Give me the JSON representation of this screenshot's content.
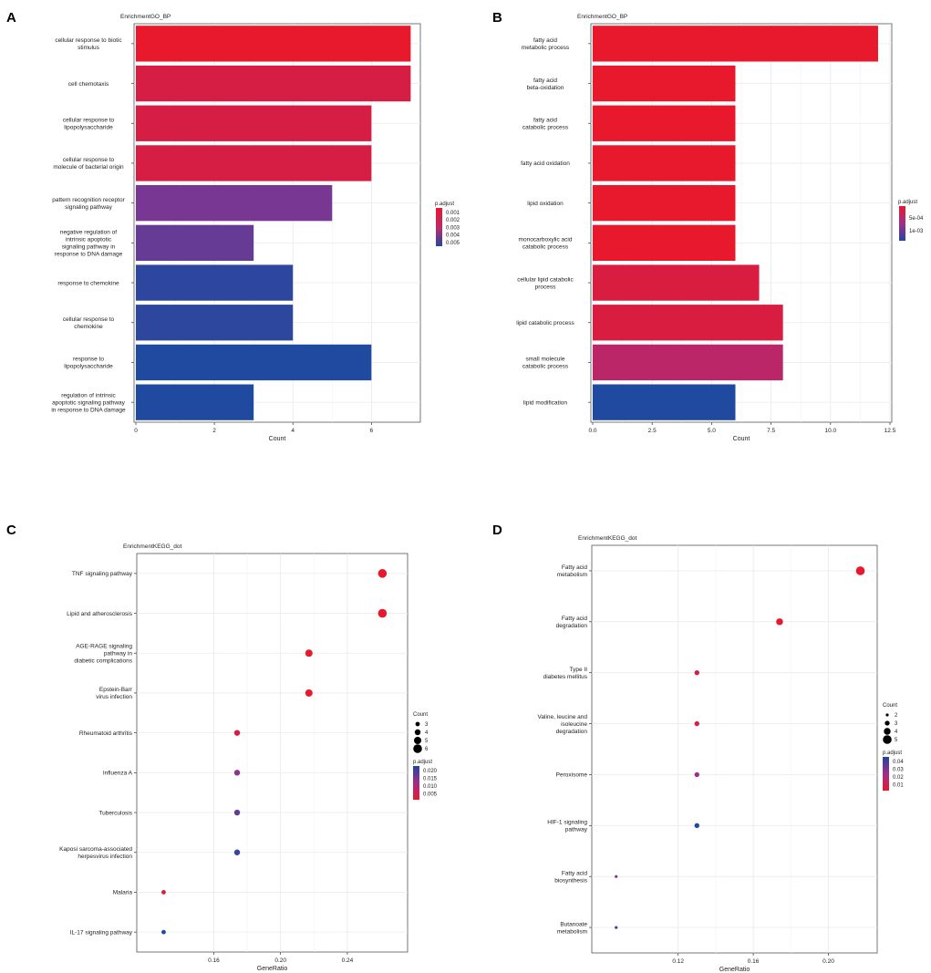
{
  "colors": {
    "red": "#e8192c",
    "blue": "#1f4aa0",
    "purple": "#6a3a9a"
  },
  "chart_data": [
    {
      "panel": "A",
      "type": "bar",
      "orientation": "horizontal",
      "title": "EnrichmentGO_BP",
      "xlabel": "Count",
      "xlim": [
        0,
        7.2
      ],
      "xticks": [
        0,
        2,
        4,
        6
      ],
      "xtick_labels": [
        "0",
        "2",
        "4",
        "6"
      ],
      "legend": {
        "title": "p.adjust",
        "labels": [
          "0.001",
          "0.002",
          "0.003",
          "0.004",
          "0.005"
        ],
        "range": [
          0.0005,
          0.0055
        ]
      },
      "bars": [
        {
          "label": [
            "cellular response to biotic",
            "stimulus"
          ],
          "value": 7,
          "padj": 0.0005
        },
        {
          "label": [
            "cell chemotaxis"
          ],
          "value": 7,
          "padj": 0.0011
        },
        {
          "label": [
            "cellular response to",
            "lipopolysaccharide"
          ],
          "value": 6,
          "padj": 0.0011
        },
        {
          "label": [
            "cellular response to",
            "molecule of bacterial origin"
          ],
          "value": 6,
          "padj": 0.0011
        },
        {
          "label": [
            "pattern recognition receptor",
            "signaling pathway"
          ],
          "value": 5,
          "padj": 0.0037
        },
        {
          "label": [
            "negative regulation of",
            "intrinsic apoptotic",
            "signaling pathway in",
            "response to DNA damage"
          ],
          "value": 3,
          "padj": 0.0041
        },
        {
          "label": [
            "response to chemokine"
          ],
          "value": 4,
          "padj": 0.0052
        },
        {
          "label": [
            "cellular response to",
            "chemokine"
          ],
          "value": 4,
          "padj": 0.0052
        },
        {
          "label": [
            "response to",
            "lipopolysaccharide"
          ],
          "value": 6,
          "padj": 0.0055
        },
        {
          "label": [
            "regulation of intrinsic",
            "apoptotic signaling pathway",
            "in response to DNA damage"
          ],
          "value": 3,
          "padj": 0.0055
        }
      ]
    },
    {
      "panel": "B",
      "type": "bar",
      "orientation": "horizontal",
      "title": "EnrichmentGO_BP",
      "xlabel": "Count",
      "xlim": [
        0,
        12.5
      ],
      "xticks": [
        0,
        2.5,
        5,
        7.5,
        10,
        12.5
      ],
      "xtick_labels": [
        "0.0",
        "2.5",
        "5.0",
        "7.5",
        "10.0",
        "12.5"
      ],
      "legend": {
        "title": "p.adjust",
        "labels": [
          "5e-04",
          "1e-03"
        ],
        "range": [
          0.0002,
          0.0012
        ]
      },
      "bars": [
        {
          "label": [
            "fatty acid",
            "metabolic process"
          ],
          "value": 12,
          "padj": 0.0002
        },
        {
          "label": [
            "fatty acid",
            "beta-oxidation"
          ],
          "value": 6,
          "padj": 0.0002
        },
        {
          "label": [
            "fatty acid",
            "catabolic process"
          ],
          "value": 6,
          "padj": 0.0002
        },
        {
          "label": [
            "fatty acid oxidation"
          ],
          "value": 6,
          "padj": 0.0002
        },
        {
          "label": [
            "lipid oxidation"
          ],
          "value": 6,
          "padj": 0.0002
        },
        {
          "label": [
            "monocarboxylic acid",
            "catabolic process"
          ],
          "value": 6,
          "padj": 0.0002
        },
        {
          "label": [
            "cellular lipid catabolic",
            "process"
          ],
          "value": 7,
          "padj": 0.0003
        },
        {
          "label": [
            "lipid catabolic process"
          ],
          "value": 8,
          "padj": 0.0003
        },
        {
          "label": [
            "small molecule",
            "catabolic process"
          ],
          "value": 8,
          "padj": 0.0005
        },
        {
          "label": [
            "lipid modification"
          ],
          "value": 6,
          "padj": 0.0012
        }
      ]
    },
    {
      "panel": "C",
      "type": "scatter",
      "title": "EnrichmentKEGG_dot",
      "xlabel": "GeneRatio",
      "xlim": [
        0.115,
        0.275
      ],
      "xticks": [
        0.16,
        0.2,
        0.24
      ],
      "xtick_labels": [
        "0.16",
        "0.20",
        "0.24"
      ],
      "legend": {
        "size_title": "Count",
        "size_labels": [
          "3",
          "4",
          "5",
          "6"
        ],
        "size_range": [
          2,
          6
        ],
        "color_title": "p.adjust",
        "color_labels": [
          "0.020",
          "0.015",
          "0.010",
          "0.005"
        ],
        "range": [
          0.002,
          0.024
        ]
      },
      "points": [
        {
          "label": [
            "TNF signaling pathway"
          ],
          "x": 0.261,
          "count": 6,
          "padj": 0.002
        },
        {
          "label": [
            "Lipid and atherosclerosis"
          ],
          "x": 0.261,
          "count": 6,
          "padj": 0.002
        },
        {
          "label": [
            "AGE-RAGE signaling",
            "pathway in",
            "diabetic complications"
          ],
          "x": 0.217,
          "count": 5,
          "padj": 0.002
        },
        {
          "label": [
            "Epstein-Barr",
            "virus infection"
          ],
          "x": 0.217,
          "count": 5,
          "padj": 0.002
        },
        {
          "label": [
            "Rheumatoid arthritis"
          ],
          "x": 0.174,
          "count": 4,
          "padj": 0.004
        },
        {
          "label": [
            "Influenza A"
          ],
          "x": 0.174,
          "count": 4,
          "padj": 0.014
        },
        {
          "label": [
            "Tuberculosis"
          ],
          "x": 0.174,
          "count": 4,
          "padj": 0.018
        },
        {
          "label": [
            "Kaposi sarcoma-associated",
            "herpesvirus infection"
          ],
          "x": 0.174,
          "count": 4,
          "padj": 0.022
        },
        {
          "label": [
            "Malaria"
          ],
          "x": 0.13,
          "count": 3,
          "padj": 0.004
        },
        {
          "label": [
            "IL-17 signaling pathway"
          ],
          "x": 0.13,
          "count": 3,
          "padj": 0.024
        }
      ]
    },
    {
      "panel": "D",
      "type": "scatter",
      "title": "EnrichmentKEGG_dot",
      "xlabel": "GeneRatio",
      "xlim": [
        0.075,
        0.225
      ],
      "xticks": [
        0.12,
        0.16,
        0.2
      ],
      "xtick_labels": [
        "0.12",
        "0.16",
        "0.20"
      ],
      "legend": {
        "size_title": "Count",
        "size_labels": [
          "2",
          "3",
          "4",
          "5"
        ],
        "size_range": [
          2,
          5
        ],
        "color_title": "p.adjust",
        "color_labels": [
          "0.04",
          "0.03",
          "0.02",
          "0.01"
        ],
        "range": [
          0.003,
          0.045
        ]
      },
      "points": [
        {
          "label": [
            "Fatty acid",
            "metabolism"
          ],
          "x": 0.217,
          "count": 5,
          "padj": 0.003
        },
        {
          "label": [
            "Fatty acid",
            "degradation"
          ],
          "x": 0.174,
          "count": 4,
          "padj": 0.004
        },
        {
          "label": [
            "Type II",
            "diabetes mellitus"
          ],
          "x": 0.13,
          "count": 3,
          "padj": 0.008
        },
        {
          "label": [
            "Valine, leucine and",
            "isoleucine",
            "degradation"
          ],
          "x": 0.13,
          "count": 3,
          "padj": 0.008
        },
        {
          "label": [
            "Peroxisome"
          ],
          "x": 0.13,
          "count": 3,
          "padj": 0.024
        },
        {
          "label": [
            "HIF-1 signaling",
            "pathway"
          ],
          "x": 0.13,
          "count": 3,
          "padj": 0.045
        },
        {
          "label": [
            "Fatty acid",
            "biosynthesis"
          ],
          "x": 0.087,
          "count": 2,
          "padj": 0.028
        },
        {
          "label": [
            "Butanoate",
            "metabolism"
          ],
          "x": 0.087,
          "count": 2,
          "padj": 0.04
        }
      ]
    }
  ]
}
